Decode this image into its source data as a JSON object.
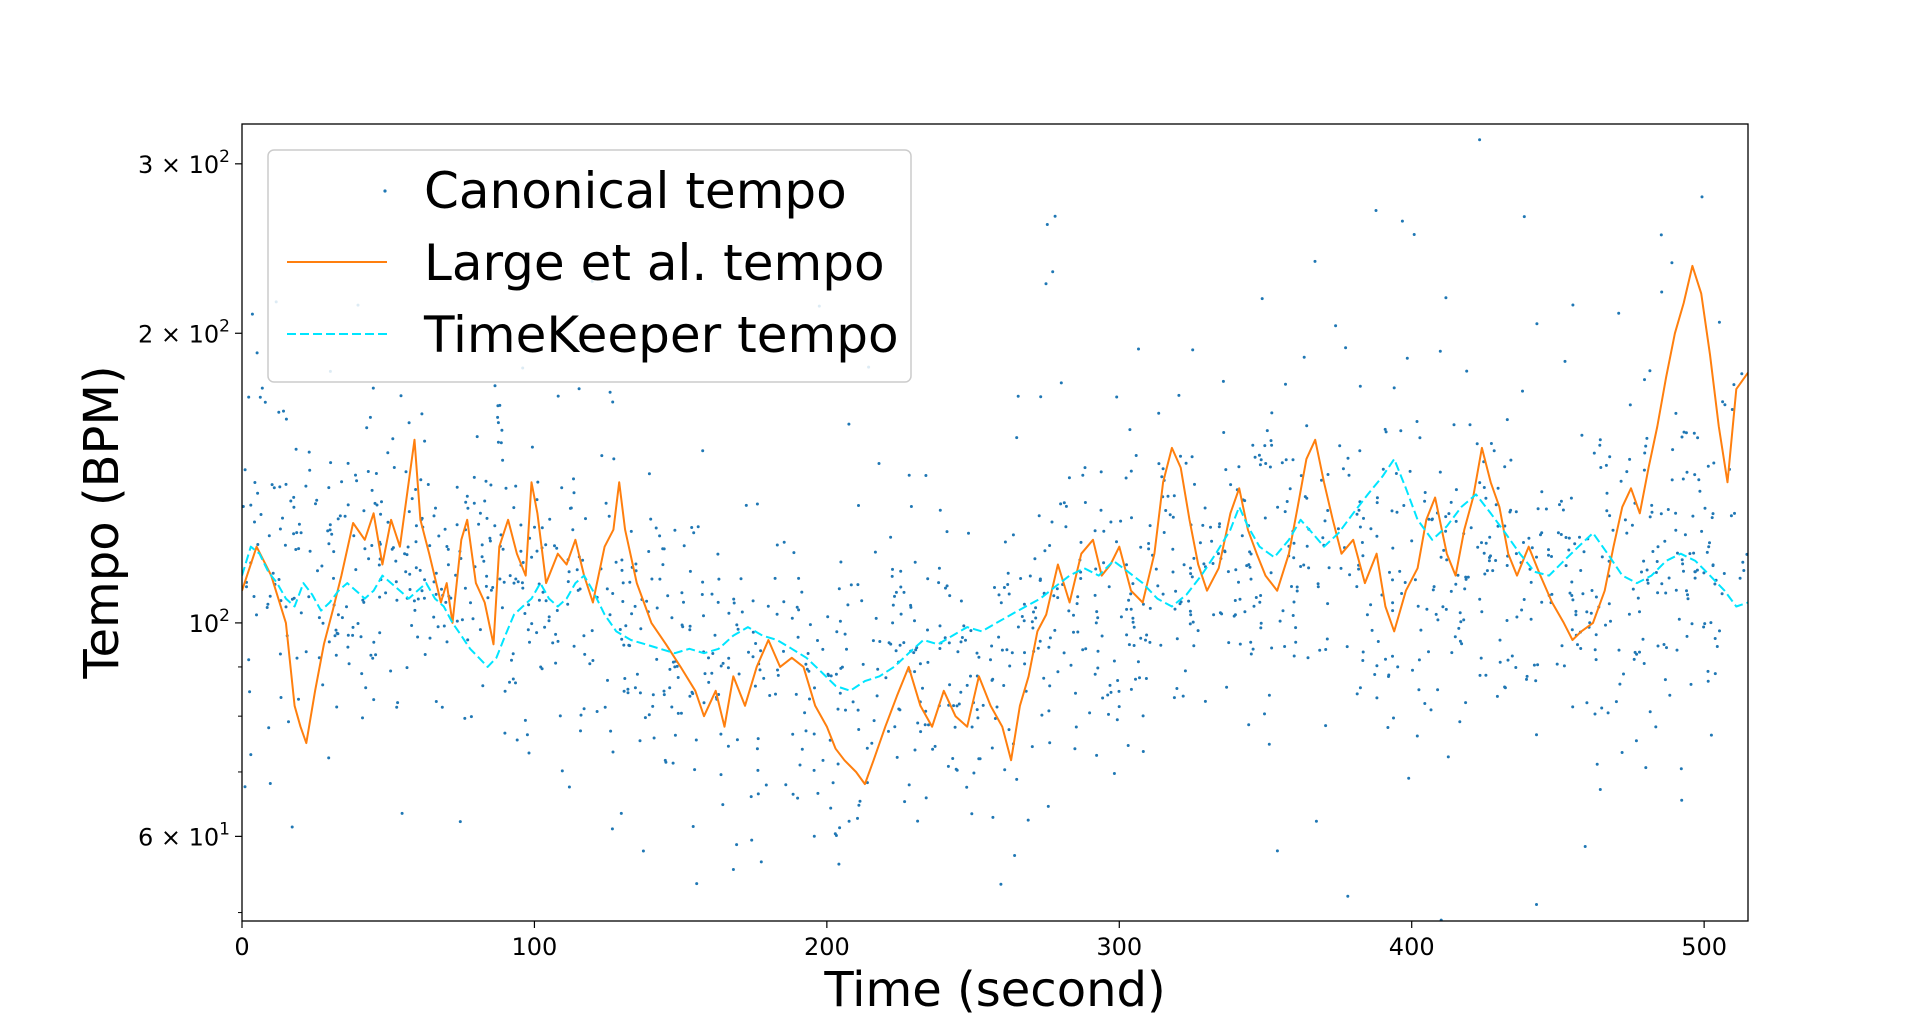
{
  "chart_data": {
    "type": "line",
    "title": "",
    "xlabel": "Time (second)",
    "ylabel": "Tempo (BPM)",
    "xlim": [
      0,
      515
    ],
    "ylim": [
      49,
      330
    ],
    "y_scale": "log",
    "grid": false,
    "legend_position": "top-left",
    "x_ticks": [
      {
        "value": 0,
        "label": "0"
      },
      {
        "value": 100,
        "label": "100"
      },
      {
        "value": 200,
        "label": "200"
      },
      {
        "value": 300,
        "label": "300"
      },
      {
        "value": 400,
        "label": "400"
      },
      {
        "value": 500,
        "label": "500"
      }
    ],
    "y_ticks": [
      {
        "value": 60,
        "mantissa": "6",
        "base": "10",
        "exp": "1"
      },
      {
        "value": 100,
        "mantissa": "",
        "base": "10",
        "exp": "2"
      },
      {
        "value": 200,
        "mantissa": "2",
        "base": "10",
        "exp": "2"
      },
      {
        "value": 300,
        "mantissa": "3",
        "base": "10",
        "exp": "2"
      }
    ],
    "y_minor_ticks": [
      50,
      70,
      80,
      90
    ],
    "series": [
      {
        "name": "Canonical tempo",
        "kind": "scatter",
        "color": "#1f77b4",
        "trend": [
          [
            0,
            118
          ],
          [
            20,
            115
          ],
          [
            40,
            112
          ],
          [
            60,
            116
          ],
          [
            70,
            104
          ],
          [
            85,
            126
          ],
          [
            100,
            113
          ],
          [
            110,
            108
          ],
          [
            130,
            100
          ],
          [
            150,
            92
          ],
          [
            170,
            90
          ],
          [
            190,
            88
          ],
          [
            205,
            85
          ],
          [
            230,
            88
          ],
          [
            255,
            92
          ],
          [
            275,
            102
          ],
          [
            300,
            110
          ],
          [
            320,
            112
          ],
          [
            345,
            118
          ],
          [
            370,
            122
          ],
          [
            395,
            112
          ],
          [
            420,
            118
          ],
          [
            450,
            110
          ],
          [
            470,
            108
          ],
          [
            490,
            120
          ],
          [
            515,
            115
          ]
        ],
        "spread": 0.15,
        "count": 1500
      },
      {
        "name": "Large et al. tempo",
        "kind": "line",
        "dash": "solid",
        "color": "#ff7f0e",
        "points": [
          [
            0,
            108
          ],
          [
            5,
            120
          ],
          [
            10,
            112
          ],
          [
            15,
            100
          ],
          [
            18,
            82
          ],
          [
            20,
            78
          ],
          [
            22,
            75
          ],
          [
            25,
            85
          ],
          [
            28,
            95
          ],
          [
            31,
            103
          ],
          [
            34,
            112
          ],
          [
            38,
            127
          ],
          [
            42,
            122
          ],
          [
            45,
            130
          ],
          [
            48,
            115
          ],
          [
            51,
            128
          ],
          [
            54,
            120
          ],
          [
            57,
            140
          ],
          [
            59,
            155
          ],
          [
            61,
            128
          ],
          [
            64,
            118
          ],
          [
            68,
            105
          ],
          [
            70,
            110
          ],
          [
            72,
            100
          ],
          [
            75,
            122
          ],
          [
            77,
            128
          ],
          [
            80,
            110
          ],
          [
            83,
            105
          ],
          [
            86,
            95
          ],
          [
            88,
            120
          ],
          [
            91,
            128
          ],
          [
            94,
            118
          ],
          [
            97,
            112
          ],
          [
            99,
            140
          ],
          [
            101,
            130
          ],
          [
            104,
            110
          ],
          [
            108,
            118
          ],
          [
            111,
            115
          ],
          [
            114,
            122
          ],
          [
            117,
            112
          ],
          [
            120,
            105
          ],
          [
            124,
            120
          ],
          [
            127,
            125
          ],
          [
            129,
            140
          ],
          [
            131,
            125
          ],
          [
            135,
            110
          ],
          [
            140,
            100
          ],
          [
            145,
            95
          ],
          [
            150,
            90
          ],
          [
            155,
            85
          ],
          [
            158,
            80
          ],
          [
            162,
            85
          ],
          [
            165,
            78
          ],
          [
            168,
            88
          ],
          [
            172,
            82
          ],
          [
            176,
            90
          ],
          [
            180,
            96
          ],
          [
            184,
            90
          ],
          [
            188,
            92
          ],
          [
            192,
            90
          ],
          [
            196,
            82
          ],
          [
            200,
            78
          ],
          [
            203,
            74
          ],
          [
            206,
            72
          ],
          [
            210,
            70
          ],
          [
            213,
            68
          ],
          [
            216,
            72
          ],
          [
            220,
            78
          ],
          [
            224,
            84
          ],
          [
            228,
            90
          ],
          [
            232,
            82
          ],
          [
            236,
            78
          ],
          [
            240,
            85
          ],
          [
            244,
            80
          ],
          [
            248,
            78
          ],
          [
            252,
            88
          ],
          [
            256,
            82
          ],
          [
            260,
            78
          ],
          [
            263,
            72
          ],
          [
            266,
            82
          ],
          [
            269,
            88
          ],
          [
            272,
            98
          ],
          [
            275,
            102
          ],
          [
            279,
            115
          ],
          [
            283,
            105
          ],
          [
            287,
            118
          ],
          [
            291,
            122
          ],
          [
            294,
            112
          ],
          [
            297,
            115
          ],
          [
            300,
            120
          ],
          [
            304,
            108
          ],
          [
            308,
            105
          ],
          [
            312,
            118
          ],
          [
            315,
            140
          ],
          [
            318,
            152
          ],
          [
            321,
            145
          ],
          [
            324,
            128
          ],
          [
            327,
            115
          ],
          [
            330,
            108
          ],
          [
            334,
            114
          ],
          [
            338,
            130
          ],
          [
            341,
            138
          ],
          [
            344,
            125
          ],
          [
            347,
            118
          ],
          [
            350,
            112
          ],
          [
            354,
            108
          ],
          [
            358,
            118
          ],
          [
            361,
            132
          ],
          [
            364,
            148
          ],
          [
            367,
            155
          ],
          [
            370,
            140
          ],
          [
            373,
            128
          ],
          [
            376,
            118
          ],
          [
            380,
            122
          ],
          [
            384,
            110
          ],
          [
            388,
            118
          ],
          [
            391,
            104
          ],
          [
            394,
            98
          ],
          [
            398,
            108
          ],
          [
            402,
            114
          ],
          [
            405,
            128
          ],
          [
            408,
            135
          ],
          [
            412,
            118
          ],
          [
            415,
            112
          ],
          [
            418,
            125
          ],
          [
            421,
            135
          ],
          [
            424,
            152
          ],
          [
            427,
            140
          ],
          [
            430,
            132
          ],
          [
            433,
            118
          ],
          [
            436,
            112
          ],
          [
            440,
            120
          ],
          [
            444,
            112
          ],
          [
            448,
            105
          ],
          [
            452,
            100
          ],
          [
            455,
            96
          ],
          [
            458,
            98
          ],
          [
            462,
            100
          ],
          [
            466,
            108
          ],
          [
            469,
            120
          ],
          [
            472,
            132
          ],
          [
            475,
            138
          ],
          [
            478,
            130
          ],
          [
            481,
            145
          ],
          [
            484,
            160
          ],
          [
            487,
            180
          ],
          [
            490,
            200
          ],
          [
            493,
            215
          ],
          [
            496,
            235
          ],
          [
            499,
            220
          ],
          [
            502,
            190
          ],
          [
            505,
            160
          ],
          [
            508,
            140
          ],
          [
            511,
            175
          ],
          [
            515,
            182
          ]
        ]
      },
      {
        "name": "TimeKeeper tempo",
        "kind": "line",
        "dash": "dashed",
        "color": "#00e5ff",
        "points": [
          [
            0,
            112
          ],
          [
            3,
            120
          ],
          [
            6,
            118
          ],
          [
            9,
            113
          ],
          [
            12,
            110
          ],
          [
            15,
            106
          ],
          [
            18,
            104
          ],
          [
            21,
            110
          ],
          [
            24,
            107
          ],
          [
            27,
            103
          ],
          [
            30,
            105
          ],
          [
            33,
            108
          ],
          [
            36,
            110
          ],
          [
            39,
            108
          ],
          [
            42,
            106
          ],
          [
            45,
            108
          ],
          [
            48,
            112
          ],
          [
            51,
            110
          ],
          [
            54,
            108
          ],
          [
            57,
            106
          ],
          [
            60,
            108
          ],
          [
            63,
            110
          ],
          [
            66,
            106
          ],
          [
            69,
            104
          ],
          [
            72,
            100
          ],
          [
            75,
            97
          ],
          [
            78,
            94
          ],
          [
            81,
            92
          ],
          [
            84,
            90
          ],
          [
            87,
            92
          ],
          [
            90,
            97
          ],
          [
            93,
            102
          ],
          [
            96,
            104
          ],
          [
            99,
            106
          ],
          [
            102,
            110
          ],
          [
            105,
            106
          ],
          [
            108,
            104
          ],
          [
            111,
            106
          ],
          [
            114,
            110
          ],
          [
            117,
            112
          ],
          [
            120,
            108
          ],
          [
            124,
            102
          ],
          [
            128,
            98
          ],
          [
            133,
            96
          ],
          [
            138,
            95
          ],
          [
            143,
            94
          ],
          [
            148,
            93
          ],
          [
            153,
            94
          ],
          [
            158,
            93
          ],
          [
            163,
            94
          ],
          [
            168,
            97
          ],
          [
            173,
            99
          ],
          [
            178,
            97
          ],
          [
            183,
            96
          ],
          [
            188,
            94
          ],
          [
            193,
            92
          ],
          [
            198,
            89
          ],
          [
            203,
            86
          ],
          [
            208,
            85
          ],
          [
            213,
            87
          ],
          [
            218,
            88
          ],
          [
            223,
            90
          ],
          [
            228,
            93
          ],
          [
            233,
            96
          ],
          [
            238,
            95
          ],
          [
            243,
            97
          ],
          [
            248,
            99
          ],
          [
            253,
            98
          ],
          [
            258,
            100
          ],
          [
            263,
            102
          ],
          [
            268,
            104
          ],
          [
            273,
            106
          ],
          [
            278,
            109
          ],
          [
            283,
            112
          ],
          [
            288,
            114
          ],
          [
            293,
            112
          ],
          [
            298,
            116
          ],
          [
            303,
            113
          ],
          [
            308,
            110
          ],
          [
            313,
            106
          ],
          [
            318,
            104
          ],
          [
            323,
            107
          ],
          [
            328,
            112
          ],
          [
            333,
            118
          ],
          [
            338,
            125
          ],
          [
            341,
            132
          ],
          [
            344,
            126
          ],
          [
            348,
            120
          ],
          [
            353,
            117
          ],
          [
            358,
            122
          ],
          [
            362,
            128
          ],
          [
            366,
            124
          ],
          [
            370,
            120
          ],
          [
            375,
            124
          ],
          [
            380,
            130
          ],
          [
            385,
            136
          ],
          [
            390,
            142
          ],
          [
            394,
            148
          ],
          [
            398,
            138
          ],
          [
            402,
            128
          ],
          [
            407,
            122
          ],
          [
            412,
            126
          ],
          [
            417,
            132
          ],
          [
            422,
            136
          ],
          [
            427,
            130
          ],
          [
            432,
            124
          ],
          [
            437,
            118
          ],
          [
            442,
            113
          ],
          [
            447,
            112
          ],
          [
            452,
            116
          ],
          [
            457,
            120
          ],
          [
            462,
            124
          ],
          [
            467,
            118
          ],
          [
            472,
            112
          ],
          [
            477,
            110
          ],
          [
            482,
            112
          ],
          [
            487,
            116
          ],
          [
            492,
            118
          ],
          [
            497,
            116
          ],
          [
            502,
            112
          ],
          [
            507,
            108
          ],
          [
            511,
            104
          ],
          [
            515,
            105
          ]
        ]
      }
    ]
  }
}
